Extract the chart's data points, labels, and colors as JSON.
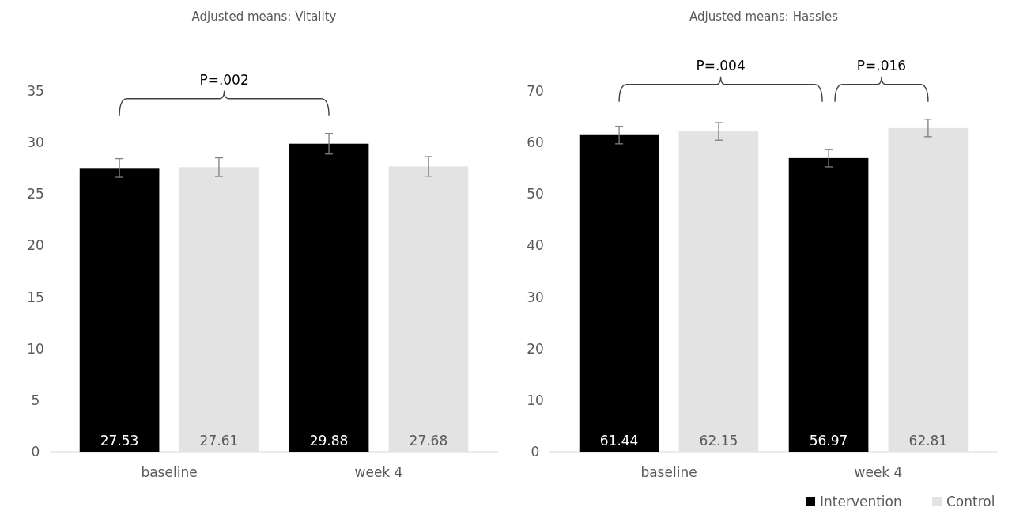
{
  "chart_data": [
    {
      "type": "bar",
      "title": "Adjusted means: Vitality",
      "categories": [
        "baseline",
        "week 4"
      ],
      "series": [
        {
          "color": "#000000",
          "values": [
            27.53,
            29.88
          ],
          "errors": [
            0.9,
            1.0
          ]
        },
        {
          "color": "#e3e3e3",
          "values": [
            27.61,
            27.68
          ],
          "errors": [
            0.9,
            0.95
          ]
        }
      ],
      "ylim": [
        0,
        35
      ],
      "yticks": [
        0,
        5,
        10,
        15,
        20,
        25,
        30,
        35
      ],
      "data_labels": true,
      "grid": false,
      "legend": false,
      "annotations": [
        "P=.002"
      ]
    },
    {
      "type": "bar",
      "title": "Adjusted means: Hassles",
      "categories": [
        "baseline",
        "week 4"
      ],
      "series": [
        {
          "name": "Intervention",
          "color": "#000000",
          "values": [
            61.44,
            56.97
          ],
          "errors": [
            1.7,
            1.7
          ]
        },
        {
          "name": "Control",
          "color": "#e3e3e3",
          "values": [
            62.15,
            62.81
          ],
          "errors": [
            1.7,
            1.7
          ]
        }
      ],
      "ylim": [
        0,
        70
      ],
      "yticks": [
        0,
        10,
        20,
        30,
        40,
        50,
        60,
        70
      ],
      "data_labels": true,
      "grid": false,
      "legend": "bottom right",
      "annotations": [
        "P=.004",
        "P=.016"
      ]
    }
  ]
}
